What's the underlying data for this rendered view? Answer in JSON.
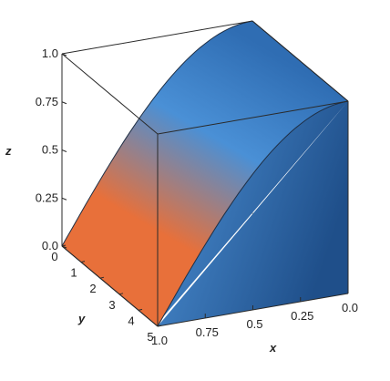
{
  "chart_data": {
    "type": "surface3d",
    "title": "",
    "function": "z = sin(x*y / 5) restricted to the region under the curve, plotted over 0<=x<=1, 0<=y<=5",
    "xlabel": "x",
    "ylabel": "y",
    "zlabel": "z",
    "xlim": [
      0,
      1
    ],
    "ylim": [
      0,
      5
    ],
    "zlim": [
      0,
      1
    ],
    "x_ticks": [
      {
        "value": 1.0,
        "label": "1.0"
      },
      {
        "value": 0.75,
        "label": "0.75"
      },
      {
        "value": 0.5,
        "label": "0.5"
      },
      {
        "value": 0.25,
        "label": "0.25"
      },
      {
        "value": 0.0,
        "label": "0.0"
      }
    ],
    "y_ticks": [
      {
        "value": 0,
        "label": "0"
      },
      {
        "value": 1,
        "label": "1"
      },
      {
        "value": 2,
        "label": "2"
      },
      {
        "value": 3,
        "label": "3"
      },
      {
        "value": 4,
        "label": "4"
      },
      {
        "value": 5,
        "label": "5"
      }
    ],
    "z_ticks": [
      {
        "value": 0.0,
        "label": "0.0"
      },
      {
        "value": 0.25,
        "label": "0.25"
      },
      {
        "value": 0.5,
        "label": "0.5"
      },
      {
        "value": 0.75,
        "label": "0.75"
      },
      {
        "value": 1.0,
        "label": "1.0"
      }
    ],
    "colors": {
      "surface_high": "#2f6db3",
      "surface_mid": "#4a90d6",
      "surface_low": "#e8703a",
      "front_face_light": "#4e93d8",
      "front_face_dark": "#1f4f8a"
    }
  }
}
